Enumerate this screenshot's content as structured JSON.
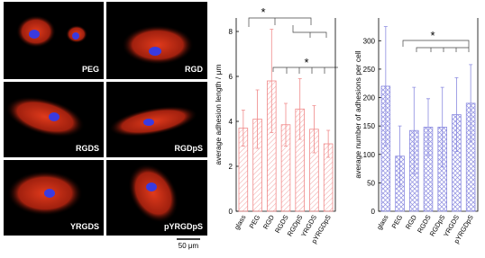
{
  "images": {
    "labels": [
      "PEG",
      "RGD",
      "RGDS",
      "RGDpS",
      "YRGDS",
      "pYRGDpS"
    ],
    "scale_bar": "50 μm"
  },
  "chart_data": [
    {
      "type": "bar",
      "y_label": "average adhesion length / μm",
      "categories": [
        "glass",
        "PEG",
        "RGD",
        "RGDS",
        "RGDpS",
        "YRGDS",
        "pYRGDpS"
      ],
      "series": [
        {
          "color": "#f08a8a",
          "values": [
            3.7,
            4.1,
            5.8,
            3.85,
            4.55,
            3.65,
            3.0
          ],
          "errors": [
            0.8,
            1.3,
            2.3,
            0.95,
            1.35,
            1.05,
            0.6
          ]
        }
      ],
      "ylim": [
        0,
        8.6
      ],
      "yticks": [
        0,
        2,
        4,
        6,
        8
      ],
      "annotations": [
        "*",
        "*"
      ]
    },
    {
      "type": "bar",
      "y_label": "average number of adhesions per cell",
      "categories": [
        "glass",
        "PEG",
        "RGD",
        "RGDS",
        "RGDpS",
        "YRGDS",
        "pYRGDpS"
      ],
      "series": [
        {
          "color": "#8c8ce0",
          "values": [
            220,
            97,
            142,
            148,
            148,
            170,
            190
          ],
          "errors": [
            105,
            53,
            76,
            50,
            70,
            65,
            68
          ]
        }
      ],
      "ylim": [
        0,
        340
      ],
      "yticks": [
        0,
        50,
        100,
        150,
        200,
        250,
        300
      ],
      "annotations": [
        "*"
      ]
    }
  ]
}
